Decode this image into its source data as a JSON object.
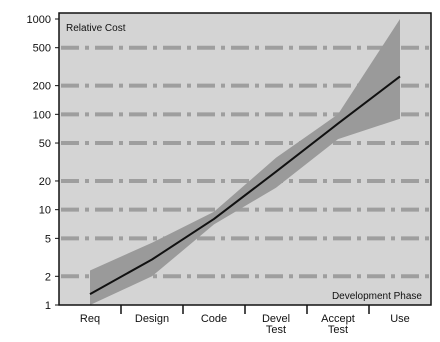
{
  "chart_data": {
    "type": "line",
    "title": "",
    "ylabel": "Relative Cost",
    "xlabel": "Development Phase",
    "yscale": "log",
    "ylim": [
      1,
      1000
    ],
    "y_ticks": [
      1,
      2,
      5,
      10,
      20,
      50,
      100,
      200,
      500,
      1000
    ],
    "categories": [
      [
        "Req"
      ],
      [
        "Design"
      ],
      [
        "Code"
      ],
      [
        "Devel",
        "Test"
      ],
      [
        "Accept",
        "Test"
      ],
      [
        "Use"
      ]
    ],
    "grid": true,
    "series": [
      {
        "values": [
          1.3,
          3,
          8,
          25,
          80,
          250
        ]
      }
    ],
    "band": {
      "upper": [
        2.3,
        4.5,
        9.5,
        35,
        100,
        1000
      ],
      "lower": [
        1.0,
        2.0,
        7.0,
        17,
        55,
        90
      ]
    },
    "colors": {
      "background": "#d4d4d4",
      "band": "#9a9a9a",
      "line": "#111111",
      "grid": "#9e9e9e",
      "frame": "#111111"
    }
  }
}
